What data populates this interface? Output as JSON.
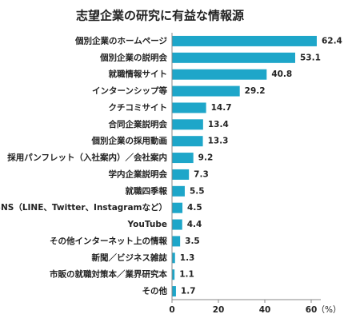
{
  "chart_data": {
    "type": "hbar",
    "title": "志望企業の研究に有益な情報源",
    "categories": [
      "個別企業のホームページ",
      "個別企業の説明会",
      "就職情報サイト",
      "インターンシップ等",
      "クチコミサイト",
      "合同企業説明会",
      "個別企業の採用動画",
      "採用パンフレット（入社案内）／会社案内",
      "学内企業説明会",
      "就職四季報",
      "SNS（LINE、Twitter、Instagramなど）",
      "YouTube",
      "その他インターネット上の情報",
      "新聞／ビジネス雑誌",
      "市販の就職対策本／業界研究本",
      "その他"
    ],
    "values": [
      62.4,
      53.1,
      40.8,
      29.2,
      14.7,
      13.4,
      13.3,
      9.2,
      7.3,
      5.5,
      4.5,
      4.4,
      3.5,
      1.3,
      1.1,
      1.7
    ],
    "color": "#1ea6c9",
    "xlim": [
      0,
      60
    ],
    "xticks": [
      0,
      20,
      40,
      60
    ],
    "x_label": "（%）"
  }
}
